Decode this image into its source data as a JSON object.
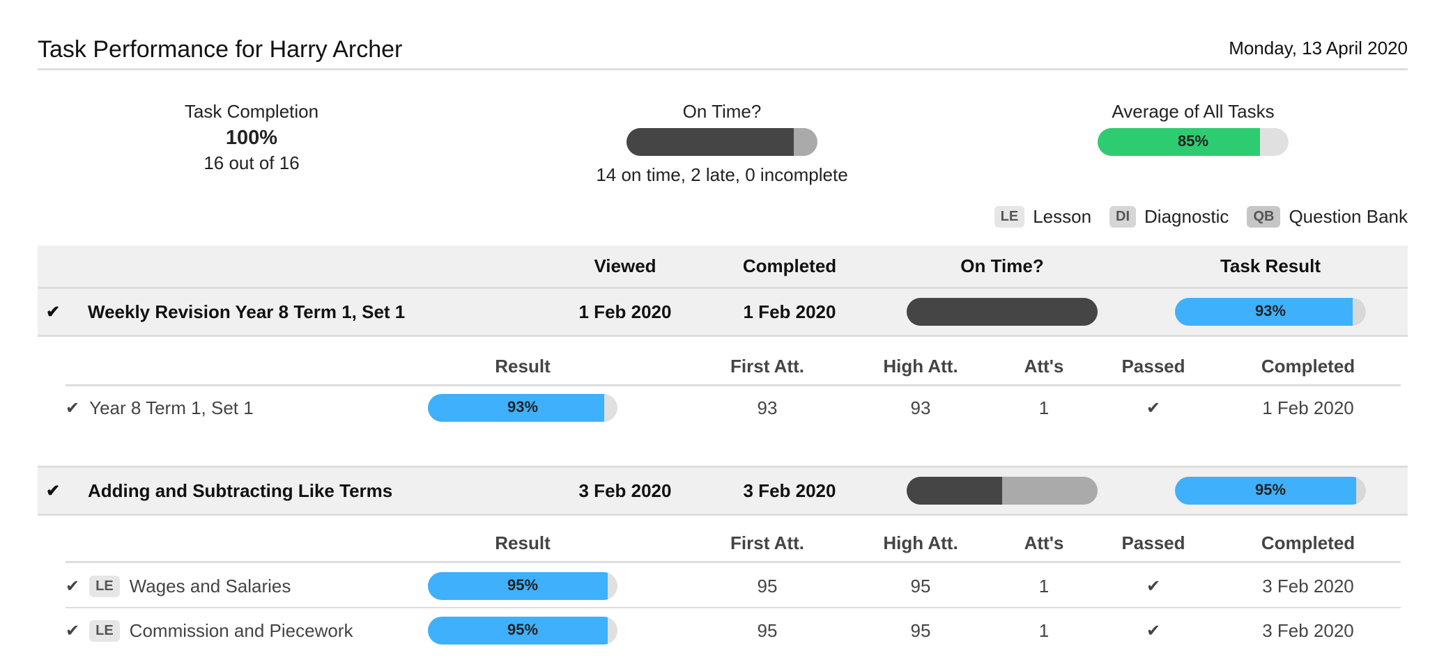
{
  "header": {
    "title": "Task Performance for Harry Archer",
    "date": "Monday, 13 April 2020"
  },
  "summary": {
    "completion": {
      "label": "Task Completion",
      "percent": "100%",
      "detail": "16 out of 16"
    },
    "on_time": {
      "label": "On Time?",
      "on_time_fraction": 0.875,
      "detail": "14 on time, 2 late, 0 incomplete"
    },
    "average": {
      "label": "Average of All Tasks",
      "value": "85%",
      "fraction": 0.85
    }
  },
  "legend": [
    {
      "tag": "LE",
      "label": "Lesson"
    },
    {
      "tag": "DI",
      "label": "Diagnostic"
    },
    {
      "tag": "QB",
      "label": "Question Bank"
    }
  ],
  "colors": {
    "green": "#2ecc71",
    "blue": "#3fb0fb",
    "dark": "#454545",
    "late": "#aaaaaa",
    "track": "#e0e0e0"
  },
  "table": {
    "headers": {
      "viewed": "Viewed",
      "completed": "Completed",
      "on_time": "On Time?",
      "task_result": "Task Result"
    },
    "sub_headers": {
      "result": "Result",
      "first": "First Att.",
      "high": "High Att.",
      "atts": "Att's",
      "passed": "Passed",
      "completed": "Completed"
    },
    "tasks": [
      {
        "name": "Weekly Revision Year 8 Term 1, Set 1",
        "viewed": "1 Feb 2020",
        "completed": "1 Feb 2020",
        "on_time_fraction": 1.0,
        "result": "93%",
        "result_fraction": 0.93,
        "items": [
          {
            "tag": "",
            "name": "Year 8 Term 1, Set 1",
            "result": "93%",
            "result_fraction": 0.93,
            "first": "93",
            "high": "93",
            "atts": "1",
            "passed": true,
            "completed": "1 Feb 2020"
          }
        ]
      },
      {
        "name": "Adding and Subtracting Like Terms",
        "viewed": "3 Feb 2020",
        "completed": "3 Feb 2020",
        "on_time_fraction": 0.5,
        "result": "95%",
        "result_fraction": 0.95,
        "items": [
          {
            "tag": "LE",
            "name": "Wages and Salaries",
            "result": "95%",
            "result_fraction": 0.95,
            "first": "95",
            "high": "95",
            "atts": "1",
            "passed": true,
            "completed": "3 Feb 2020"
          },
          {
            "tag": "LE",
            "name": "Commission and Piecework",
            "result": "95%",
            "result_fraction": 0.95,
            "first": "95",
            "high": "95",
            "atts": "1",
            "passed": true,
            "completed": "3 Feb 2020"
          }
        ]
      }
    ]
  }
}
